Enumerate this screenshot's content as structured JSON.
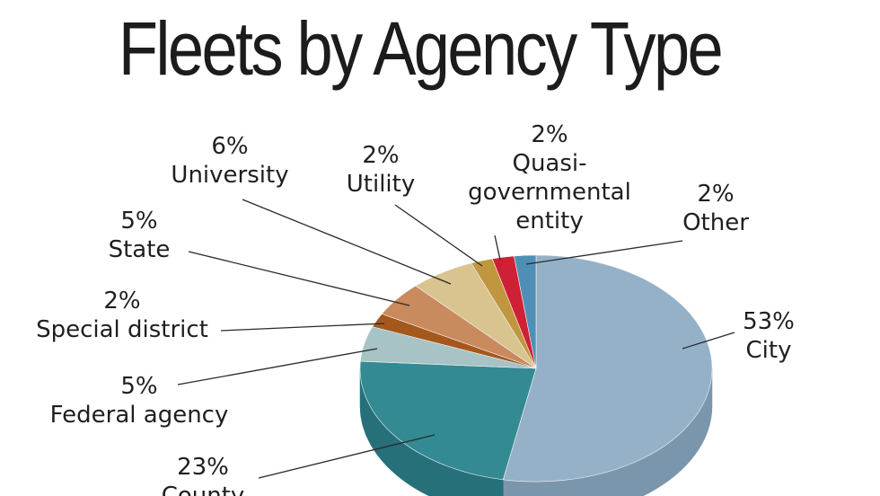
{
  "chart_data": {
    "type": "pie",
    "title": "Fleets by Agency Type",
    "slices": [
      {
        "label": "City",
        "percent_label": "53%",
        "value": 53,
        "color": "#94b1c8",
        "side": "#7a96ad"
      },
      {
        "label": "County",
        "percent_label": "23%",
        "value": 23,
        "color": "#338a92",
        "side": "#26707a"
      },
      {
        "label": "Federal agency",
        "percent_label": "5%",
        "value": 5,
        "color": "#a7c3c6",
        "side": "#8aa8ac"
      },
      {
        "label": "Special district",
        "percent_label": "2%",
        "value": 2,
        "color": "#a5581c",
        "side": "#86450f"
      },
      {
        "label": "State",
        "percent_label": "5%",
        "value": 5,
        "color": "#c98a5e",
        "side": "#a86e45"
      },
      {
        "label": "University",
        "percent_label": "6%",
        "value": 6,
        "color": "#d9c38f",
        "side": "#bca570"
      },
      {
        "label": "Utility",
        "percent_label": "2%",
        "value": 2,
        "color": "#c0973f",
        "side": "#9f7a2a"
      },
      {
        "label": "Quasi-\ngovernmental\nentity",
        "percent_label": "2%",
        "value": 2,
        "color": "#cf2035",
        "side": "#a8152a"
      },
      {
        "label": "Other",
        "percent_label": "2%",
        "value": 2,
        "color": "#4f8fb5",
        "side": "#3a7396"
      }
    ]
  }
}
